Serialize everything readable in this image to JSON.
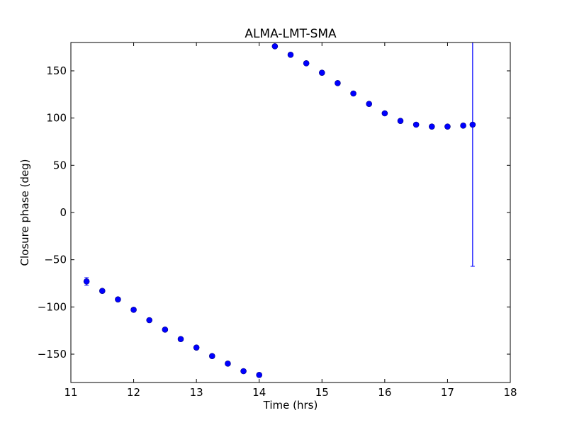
{
  "chart_data": {
    "type": "scatter",
    "title": "ALMA-LMT-SMA",
    "xlabel": "Time (hrs)",
    "ylabel": "Closure phase (deg)",
    "xlim": [
      11,
      18
    ],
    "ylim": [
      -180,
      180
    ],
    "xticks": [
      11,
      12,
      13,
      14,
      15,
      16,
      17,
      18
    ],
    "yticks": [
      -150,
      -100,
      -50,
      0,
      50,
      100,
      150
    ],
    "xtick_labels": [
      "11",
      "12",
      "13",
      "14",
      "15",
      "16",
      "17",
      "18"
    ],
    "ytick_labels": [
      "−150",
      "−100",
      "−50",
      "0",
      "50",
      "100",
      "150"
    ],
    "grid": false,
    "series": [
      {
        "color": "#0000ff",
        "marker": "circle",
        "points": [
          {
            "x": 11.25,
            "y": -73,
            "err": 4
          },
          {
            "x": 11.5,
            "y": -83,
            "err": 1.5
          },
          {
            "x": 11.75,
            "y": -92,
            "err": 1.5
          },
          {
            "x": 12.0,
            "y": -103,
            "err": 1.5
          },
          {
            "x": 12.25,
            "y": -114,
            "err": 1.5
          },
          {
            "x": 12.5,
            "y": -124,
            "err": 1.5
          },
          {
            "x": 12.75,
            "y": -134,
            "err": 1.5
          },
          {
            "x": 13.0,
            "y": -143,
            "err": 1.5
          },
          {
            "x": 13.25,
            "y": -152,
            "err": 1.5
          },
          {
            "x": 13.5,
            "y": -160,
            "err": 1.5
          },
          {
            "x": 13.75,
            "y": -168,
            "err": 1.5
          },
          {
            "x": 14.0,
            "y": -172,
            "err": 1.5
          },
          {
            "x": 14.25,
            "y": 176,
            "err": 1.5
          },
          {
            "x": 14.5,
            "y": 167,
            "err": 1.5
          },
          {
            "x": 14.75,
            "y": 158,
            "err": 1.5
          },
          {
            "x": 15.0,
            "y": 148,
            "err": 1.5
          },
          {
            "x": 15.25,
            "y": 137,
            "err": 1.5
          },
          {
            "x": 15.5,
            "y": 126,
            "err": 1.5
          },
          {
            "x": 15.75,
            "y": 115,
            "err": 1.5
          },
          {
            "x": 16.0,
            "y": 105,
            "err": 1.5
          },
          {
            "x": 16.25,
            "y": 97,
            "err": 1.5
          },
          {
            "x": 16.5,
            "y": 93,
            "err": 1.5
          },
          {
            "x": 16.75,
            "y": 91,
            "err": 1.5
          },
          {
            "x": 17.0,
            "y": 91,
            "err": 1.5
          },
          {
            "x": 17.25,
            "y": 92,
            "err": 2
          },
          {
            "x": 17.4,
            "y": 93,
            "err": 150
          }
        ]
      }
    ]
  }
}
